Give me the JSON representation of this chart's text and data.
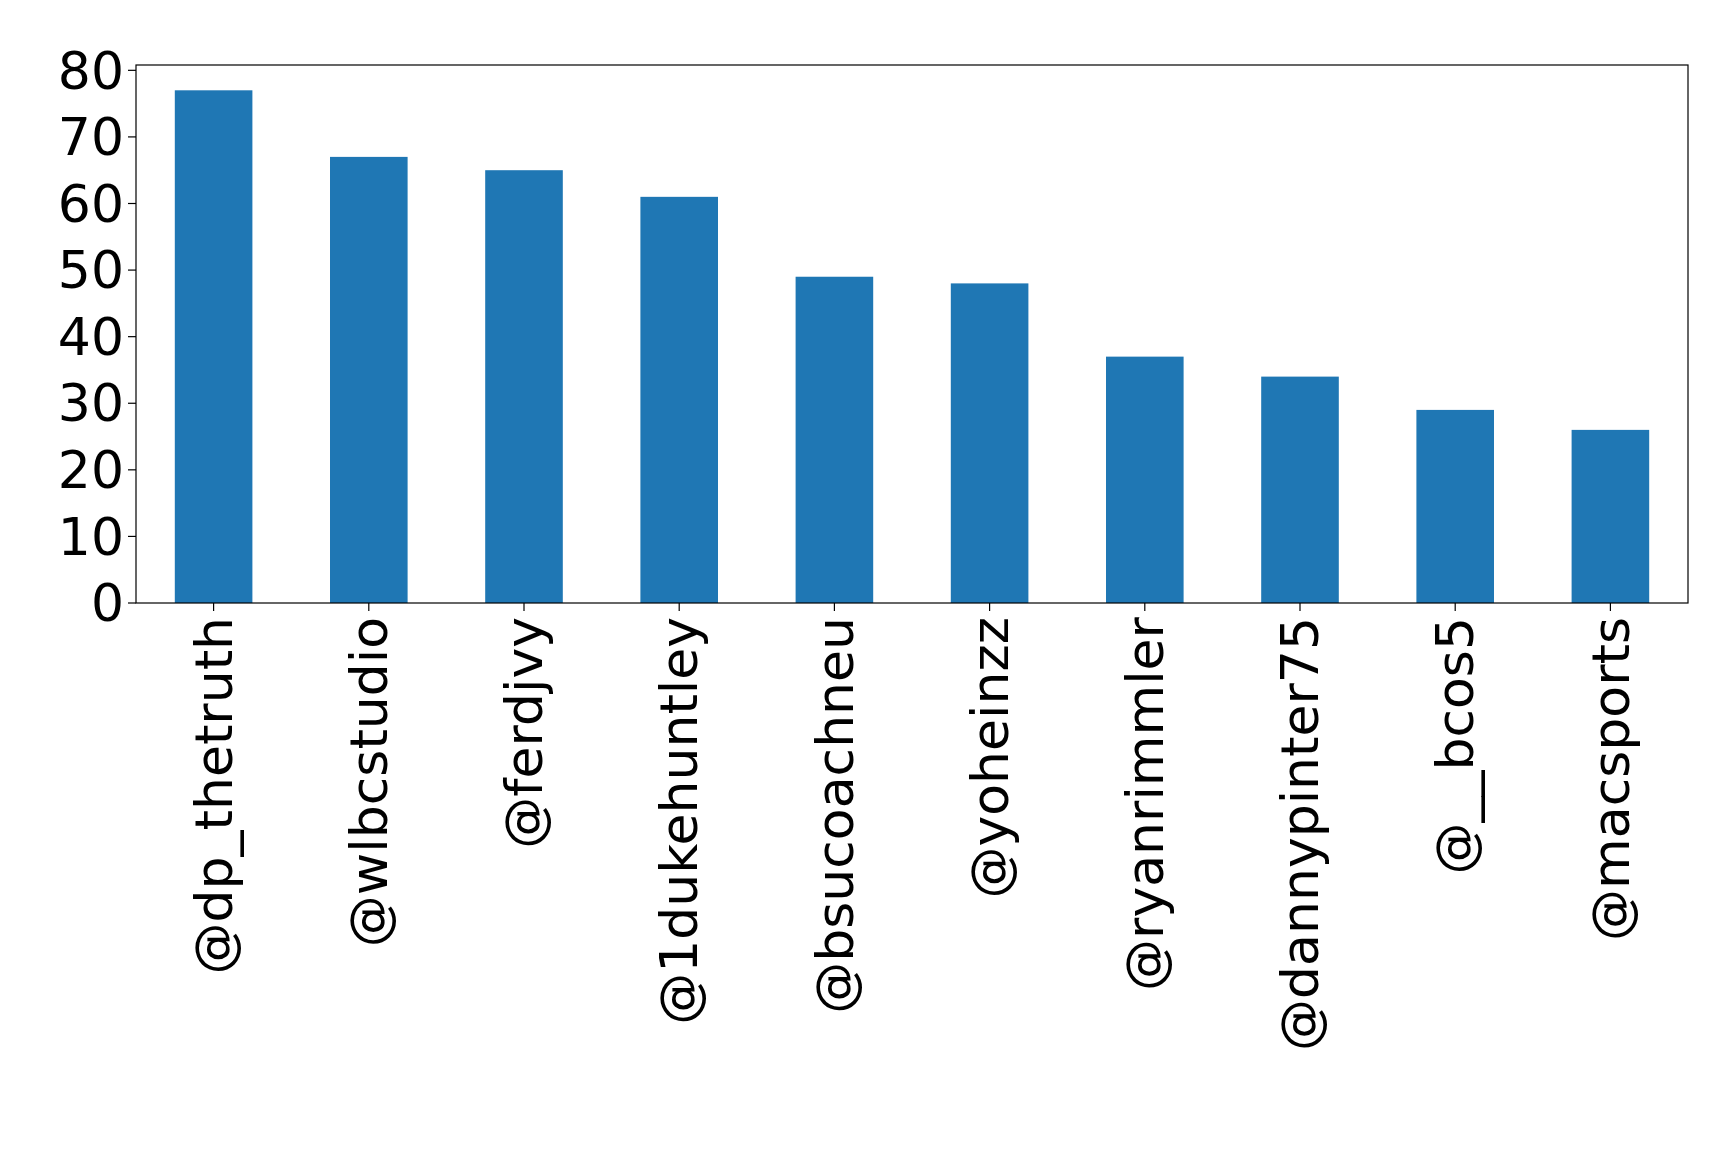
{
  "chart_data": {
    "type": "bar",
    "categories": [
      "@dp_thetruth",
      "@wlbcstudio",
      "@ferdjvy",
      "@1dukehuntley",
      "@bsucoachneu",
      "@yoheinzz",
      "@ryanrimmler",
      "@dannypinter75",
      "@__bcos5",
      "@macsports"
    ],
    "values": [
      77,
      67,
      65,
      61,
      49,
      48,
      37,
      34,
      29,
      26
    ],
    "color": "#1f77b4",
    "ylim": [
      0,
      80.8
    ],
    "yticks": [
      0,
      10,
      20,
      30,
      40,
      50,
      60,
      70,
      80
    ],
    "grid": false
  }
}
